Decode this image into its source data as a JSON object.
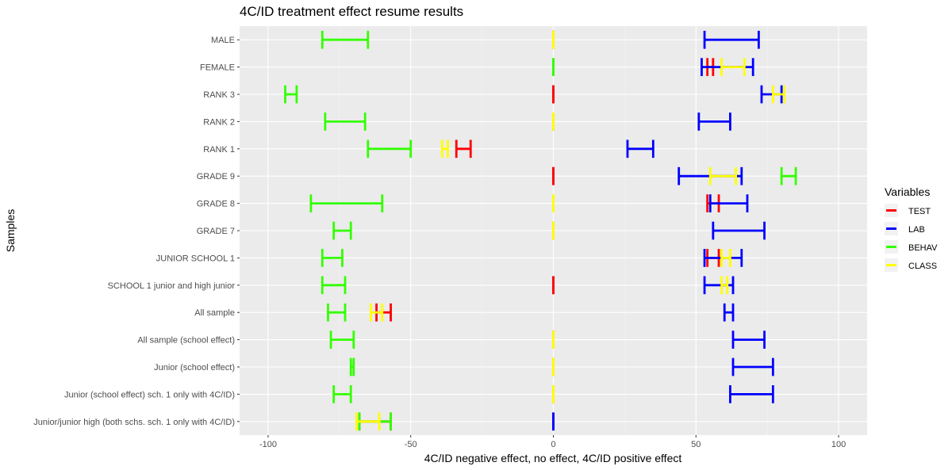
{
  "chart_data": {
    "type": "errorbar",
    "title": "4C/ID treatment effect resume results",
    "xlabel": "4C/ID negative effect, no effect, 4C/ID positive effect",
    "ylabel": "Samples",
    "xlim": [
      -110,
      110
    ],
    "xticks": [
      -100,
      -50,
      0,
      50,
      100
    ],
    "xtick_labels": [
      "-100",
      "-50",
      "0",
      "50",
      "100"
    ],
    "grid": true,
    "legend": {
      "title": "Variables",
      "position": "right"
    },
    "categories": [
      "MALE",
      "FEMALE",
      "RANK 3",
      "RANK 2",
      "RANK 1",
      "GRADE 9",
      "GRADE 8",
      "GRADE 7",
      "JUNIOR SCHOOL 1",
      "SCHOOL 1 junior and high junior",
      "All sample",
      "All sample (school effect)",
      "Junior (school effect)",
      "Junior (school effect) sch. 1 only with 4C/ID)",
      "Junior/junior high (both schs. sch. 1 only with 4C/ID)"
    ],
    "series": [
      {
        "name": "TEST",
        "color": "#ff0000",
        "intervals": [
          [
            "MALE",
            0,
            0
          ],
          [
            "FEMALE",
            54,
            56
          ],
          [
            "RANK 3",
            0,
            0
          ],
          [
            "RANK 2",
            0,
            0
          ],
          [
            "RANK 1",
            -34,
            -29
          ],
          [
            "GRADE 9",
            0,
            0
          ],
          [
            "GRADE 8",
            54,
            58
          ],
          [
            "GRADE 7",
            0,
            0
          ],
          [
            "JUNIOR SCHOOL 1",
            54,
            58
          ],
          [
            "SCHOOL 1 junior and high junior",
            0,
            0
          ],
          [
            "All sample",
            -62,
            -57
          ],
          [
            "All sample (school effect)",
            0,
            0
          ],
          [
            "Junior (school effect)",
            0,
            0
          ],
          [
            "Junior (school effect) sch. 1 only with 4C/ID)",
            0,
            0
          ],
          [
            "Junior/junior high (both schs. sch. 1 only with 4C/ID)",
            -68,
            -57
          ]
        ]
      },
      {
        "name": "LAB",
        "color": "#0000ff",
        "intervals": [
          [
            "MALE",
            53,
            72
          ],
          [
            "FEMALE",
            52,
            70
          ],
          [
            "RANK 3",
            73,
            80
          ],
          [
            "RANK 2",
            51,
            62
          ],
          [
            "RANK 1",
            26,
            35
          ],
          [
            "GRADE 9",
            44,
            66
          ],
          [
            "GRADE 8",
            55,
            68
          ],
          [
            "GRADE 7",
            56,
            74
          ],
          [
            "JUNIOR SCHOOL 1",
            53,
            66
          ],
          [
            "SCHOOL 1 junior and high junior",
            53,
            63
          ],
          [
            "All sample",
            60,
            63
          ],
          [
            "All sample (school effect)",
            63,
            74
          ],
          [
            "Junior (school effect)",
            63,
            77
          ],
          [
            "Junior (school effect) sch. 1 only with 4C/ID)",
            62,
            77
          ],
          [
            "Junior/junior high (both schs. sch. 1 only with 4C/ID)",
            0,
            0
          ]
        ]
      },
      {
        "name": "BEHAV",
        "color": "#33ff00",
        "intervals": [
          [
            "MALE",
            -81,
            -65
          ],
          [
            "FEMALE",
            0,
            0
          ],
          [
            "RANK 3",
            -94,
            -90
          ],
          [
            "RANK 2",
            -80,
            -66
          ],
          [
            "RANK 1",
            -65,
            -50
          ],
          [
            "GRADE 9",
            80,
            85
          ],
          [
            "GRADE 8",
            -85,
            -60
          ],
          [
            "GRADE 7",
            -77,
            -71
          ],
          [
            "JUNIOR SCHOOL 1",
            -81,
            -74
          ],
          [
            "SCHOOL 1 junior and high junior",
            -81,
            -73
          ],
          [
            "All sample",
            -79,
            -73
          ],
          [
            "All sample (school effect)",
            -78,
            -70
          ],
          [
            "Junior (school effect)",
            -71,
            -70
          ],
          [
            "Junior (school effect) sch. 1 only with 4C/ID)",
            -77,
            -71
          ],
          [
            "Junior/junior high (both schs. sch. 1 only with 4C/ID)",
            -68,
            -57
          ]
        ]
      },
      {
        "name": "CLASS",
        "color": "#ffff00",
        "intervals": [
          [
            "MALE",
            0,
            0
          ],
          [
            "FEMALE",
            59,
            67
          ],
          [
            "RANK 3",
            77,
            81
          ],
          [
            "RANK 2",
            0,
            0
          ],
          [
            "RANK 1",
            -39,
            -37
          ],
          [
            "GRADE 9",
            55,
            64
          ],
          [
            "GRADE 8",
            0,
            0
          ],
          [
            "GRADE 7",
            0,
            0
          ],
          [
            "JUNIOR SCHOOL 1",
            59,
            62
          ],
          [
            "SCHOOL 1 junior and high junior",
            59,
            61
          ],
          [
            "All sample",
            -64,
            -60
          ],
          [
            "All sample (school effect)",
            0,
            0
          ],
          [
            "Junior (school effect)",
            0,
            0
          ],
          [
            "Junior (school effect) sch. 1 only with 4C/ID)",
            0,
            0
          ],
          [
            "Junior/junior high (both schs. sch. 1 only with 4C/ID)",
            -69,
            -61
          ]
        ]
      }
    ]
  }
}
